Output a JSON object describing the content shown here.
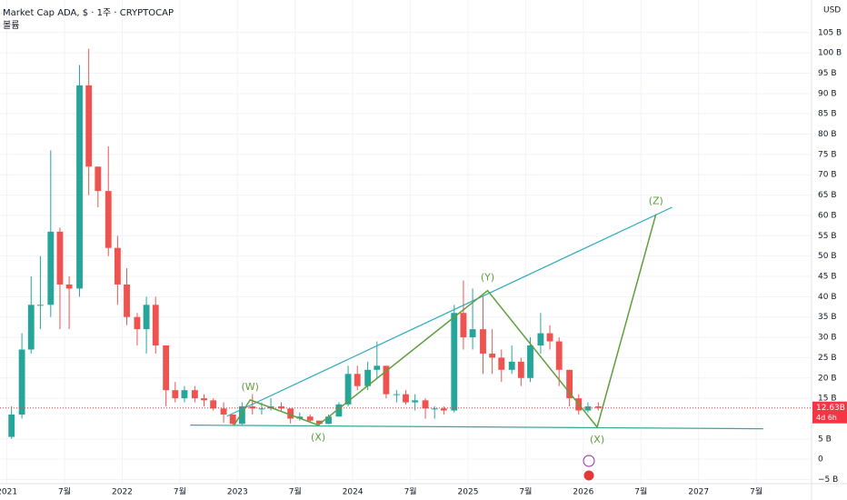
{
  "header": {
    "title": "Market Cap ADA, $ · 1주 · CRYPTOCAP",
    "subtitle": "볼륨",
    "currency": "USD"
  },
  "chart_data": {
    "type": "candlestick",
    "x": [
      2021.04,
      2021.13,
      2021.21,
      2021.29,
      2021.38,
      2021.46,
      2021.54,
      2021.63,
      2021.71,
      2021.79,
      2021.88,
      2021.96,
      2022.04,
      2022.13,
      2022.21,
      2022.29,
      2022.38,
      2022.46,
      2022.54,
      2022.63,
      2022.71,
      2022.79,
      2022.88,
      2022.96,
      2023.04,
      2023.13,
      2023.21,
      2023.29,
      2023.38,
      2023.46,
      2023.54,
      2023.63,
      2023.71,
      2023.79,
      2023.88,
      2023.96,
      2024.04,
      2024.13,
      2024.21,
      2024.29,
      2024.38,
      2024.46,
      2024.54,
      2024.63,
      2024.71,
      2024.79,
      2024.88,
      2024.96,
      2025.04,
      2025.13,
      2025.21,
      2025.29,
      2025.38,
      2025.46,
      2025.54,
      2025.63,
      2025.71,
      2025.79,
      2025.88,
      2025.96,
      2026.04,
      2026.13
    ],
    "open": [
      5.5,
      11,
      27,
      38,
      38,
      56,
      43,
      42,
      92,
      72,
      66,
      52,
      43,
      35,
      32,
      38,
      28,
      17,
      15,
      17,
      15,
      14.5,
      12.5,
      11,
      8.7,
      13,
      12.5,
      12.5,
      13,
      12.5,
      10,
      10.5,
      9.5,
      8.7,
      10.5,
      13.5,
      21,
      18,
      22,
      23,
      16,
      16,
      14,
      14.5,
      12.5,
      12.5,
      12,
      36,
      30,
      32,
      26,
      25,
      22,
      24,
      20,
      28,
      31,
      29,
      22,
      15,
      12,
      13
    ],
    "high": [
      13,
      31,
      45,
      50,
      76,
      57,
      45,
      97,
      101,
      72,
      77,
      55,
      47,
      36,
      40,
      40,
      28,
      19,
      18,
      18,
      16,
      15,
      14,
      11,
      14,
      16,
      14,
      15,
      14,
      12.5,
      11.5,
      11,
      9.5,
      11,
      14,
      23,
      23,
      24,
      29,
      22,
      17,
      17,
      16,
      15,
      13,
      13,
      38,
      44,
      42,
      40,
      32,
      27,
      28,
      25,
      30,
      36,
      33,
      30,
      22,
      16,
      14,
      14
    ],
    "low": [
      5,
      10,
      26,
      32,
      35,
      32,
      32,
      40,
      65,
      62,
      50,
      38,
      33,
      28,
      26,
      26,
      13,
      14,
      14,
      14,
      13,
      12,
      9,
      8.5,
      8.5,
      11,
      11,
      12,
      12,
      8.8,
      9.5,
      9,
      8.4,
      8.6,
      10.5,
      13,
      17,
      17,
      20,
      15,
      14,
      13.5,
      12,
      10,
      10,
      11,
      11.5,
      27,
      27,
      21,
      21,
      19,
      21,
      18,
      19,
      26,
      27,
      18,
      13,
      11,
      11.5,
      12
    ],
    "close": [
      11,
      27,
      38,
      38,
      56,
      43,
      42,
      92,
      72,
      66,
      52,
      43,
      35,
      32,
      38,
      28,
      17,
      15,
      17,
      15,
      14.5,
      12.5,
      11,
      8.7,
      13,
      12.5,
      12.5,
      13,
      12.5,
      10,
      10.5,
      9.5,
      8.7,
      10.5,
      13.5,
      21,
      18,
      22,
      23,
      16,
      16,
      14,
      14.5,
      12.5,
      12.5,
      12,
      36,
      30,
      32,
      26,
      25,
      22,
      24,
      20,
      28,
      31,
      29,
      22,
      15,
      12,
      13,
      12.63
    ],
    "up_color": "#26a69a",
    "down_color": "#ef5350",
    "xlim": [
      2020.94,
      2027.98
    ],
    "xticks": [
      {
        "value": 2021,
        "label": "2021"
      },
      {
        "value": 2021.5,
        "label": "7월"
      },
      {
        "value": 2022,
        "label": "2022"
      },
      {
        "value": 2022.5,
        "label": "7월"
      },
      {
        "value": 2023,
        "label": "2023"
      },
      {
        "value": 2023.5,
        "label": "7월"
      },
      {
        "value": 2024,
        "label": "2024"
      },
      {
        "value": 2024.5,
        "label": "7월"
      },
      {
        "value": 2025,
        "label": "2025"
      },
      {
        "value": 2025.5,
        "label": "7월"
      },
      {
        "value": 2026,
        "label": "2026"
      },
      {
        "value": 2026.5,
        "label": "7월"
      },
      {
        "value": 2027,
        "label": "2027"
      },
      {
        "value": 2027.5,
        "label": "7월"
      }
    ],
    "ylim": [
      -6,
      113
    ],
    "yticks": [
      {
        "value": 105,
        "label": "105 B"
      },
      {
        "value": 100,
        "label": "100 B"
      },
      {
        "value": 95,
        "label": "95 B"
      },
      {
        "value": 90,
        "label": "90 B"
      },
      {
        "value": 85,
        "label": "85 B"
      },
      {
        "value": 80,
        "label": "80 B"
      },
      {
        "value": 75,
        "label": "75 B"
      },
      {
        "value": 70,
        "label": "70 B"
      },
      {
        "value": 65,
        "label": "65 B"
      },
      {
        "value": 60,
        "label": "60 B"
      },
      {
        "value": 55,
        "label": "55 B"
      },
      {
        "value": 50,
        "label": "50 B"
      },
      {
        "value": 45,
        "label": "45 B"
      },
      {
        "value": 40,
        "label": "40 B"
      },
      {
        "value": 35,
        "label": "35 B"
      },
      {
        "value": 30,
        "label": "30 B"
      },
      {
        "value": 25,
        "label": "25 B"
      },
      {
        "value": 20,
        "label": "20 B"
      },
      {
        "value": 15,
        "label": "15 B"
      },
      {
        "value": 5,
        "label": "5 B"
      },
      0,
      {
        "value": -5,
        "label": "−5 B"
      }
    ],
    "grid": true,
    "last_price": {
      "value": 12.63,
      "label": "12.63B",
      "countdown": "4d 6h",
      "color": "#f23645"
    },
    "wave": {
      "x": [
        2022.97,
        2023.11,
        2023.7,
        2025.17,
        2026.12,
        2026.63
      ],
      "y": [
        8.4,
        14.6,
        8.4,
        41.5,
        7.9,
        60.3
      ],
      "labels": [
        null,
        "(W)",
        "(X)",
        "(Y)",
        "(X)",
        "(Z)"
      ],
      "color": "#5e9e3c"
    },
    "trendlines": [
      {
        "x": [
          2022.91,
          2026.77
        ],
        "y": [
          10.6,
          62.0
        ],
        "color": "#2fa9bd"
      },
      {
        "x": [
          2022.59,
          2027.56
        ],
        "y": [
          8.4,
          7.5
        ],
        "color": "#38a899"
      }
    ]
  }
}
